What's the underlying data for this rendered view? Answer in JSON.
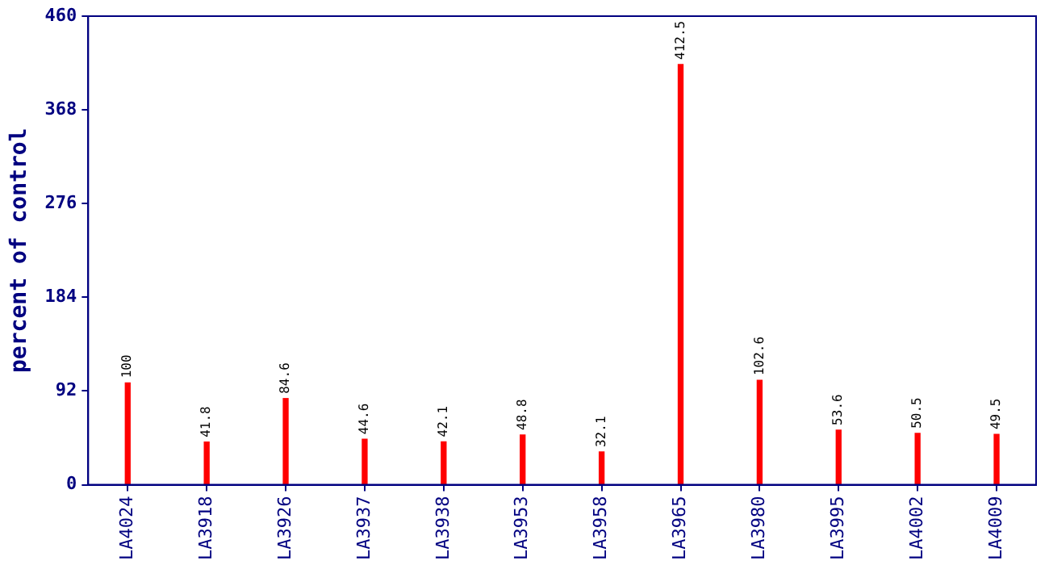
{
  "chart_data": {
    "type": "bar",
    "ylabel": "percent of control",
    "categories": [
      "LA4024",
      "LA3918",
      "LA3926",
      "LA3937",
      "LA3938",
      "LA3953",
      "LA3958",
      "LA3965",
      "LA3980",
      "LA3995",
      "LA4002",
      "LA4009"
    ],
    "values": [
      100,
      41.8,
      84.6,
      44.6,
      42.1,
      48.8,
      32.1,
      412.5,
      102.6,
      53.6,
      50.5,
      49.5
    ],
    "color": "#ff0000",
    "ylim": [
      0,
      460
    ],
    "yticks": [
      0,
      92,
      184,
      276,
      368,
      460
    ],
    "grid": false,
    "legend": false,
    "data_labels": true
  }
}
